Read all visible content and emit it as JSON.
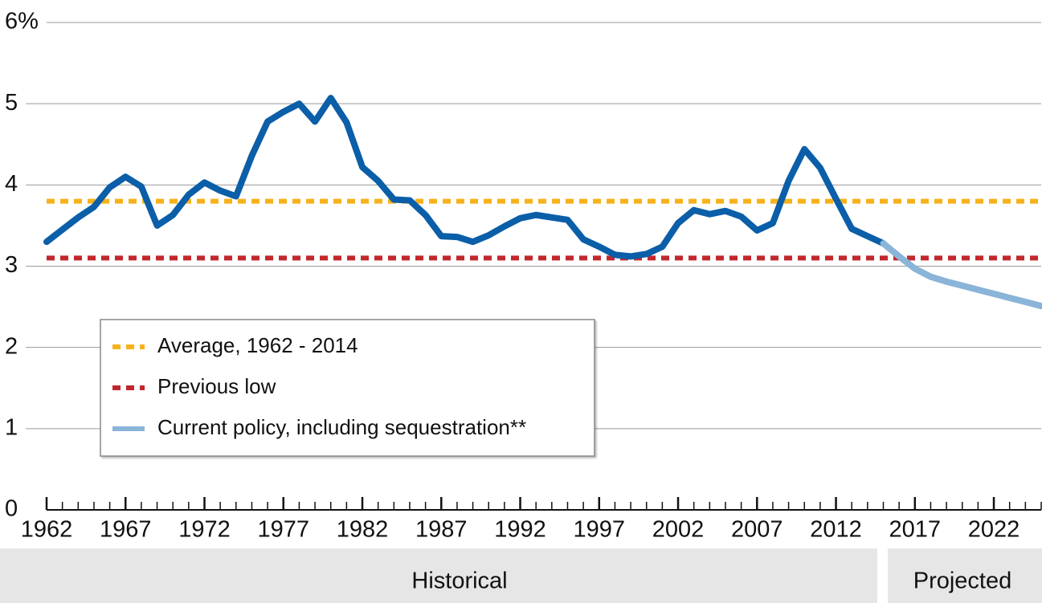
{
  "chart_data": {
    "type": "line",
    "xlim": [
      1962,
      2025
    ],
    "ylim": [
      0,
      6
    ],
    "xticks": [
      1962,
      1967,
      1972,
      1977,
      1982,
      1987,
      1992,
      1997,
      2002,
      2007,
      2012,
      2017,
      2022
    ],
    "yticks": [
      0,
      1,
      2,
      3,
      4,
      5,
      {
        "value": 6,
        "label": "6%"
      }
    ],
    "grid": true,
    "series": [
      {
        "color": "#0b5ea8",
        "x": [
          1962,
          1963,
          1964,
          1965,
          1966,
          1967,
          1968,
          1969,
          1970,
          1971,
          1972,
          1973,
          1974,
          1975,
          1976,
          1977,
          1978,
          1979,
          1980,
          1981,
          1982,
          1983,
          1984,
          1985,
          1986,
          1987,
          1988,
          1989,
          1990,
          1991,
          1992,
          1993,
          1994,
          1995,
          1996,
          1997,
          1998,
          1999,
          2000,
          2001,
          2002,
          2003,
          2004,
          2005,
          2006,
          2007,
          2008,
          2009,
          2010,
          2011,
          2012,
          2013,
          2014,
          2015
        ],
        "values": [
          3.3,
          3.45,
          3.6,
          3.73,
          3.97,
          4.1,
          3.98,
          3.5,
          3.63,
          3.88,
          4.03,
          3.93,
          3.86,
          4.36,
          4.78,
          4.9,
          5.0,
          4.78,
          5.07,
          4.77,
          4.22,
          4.05,
          3.82,
          3.81,
          3.63,
          3.37,
          3.36,
          3.3,
          3.38,
          3.49,
          3.59,
          3.63,
          3.6,
          3.57,
          3.33,
          3.24,
          3.14,
          3.12,
          3.15,
          3.24,
          3.53,
          3.69,
          3.64,
          3.68,
          3.61,
          3.44,
          3.53,
          4.05,
          4.44,
          4.21,
          3.83,
          3.46,
          3.37,
          3.28
        ]
      },
      {
        "name": "Current policy, including sequestration**",
        "color": "#8ab4d8",
        "x": [
          2015,
          2016,
          2017,
          2018,
          2019,
          2020,
          2021,
          2022,
          2023,
          2024,
          2025
        ],
        "values": [
          3.28,
          3.12,
          2.97,
          2.87,
          2.81,
          2.76,
          2.71,
          2.66,
          2.61,
          2.56,
          2.51
        ]
      }
    ],
    "reference_lines": [
      {
        "name": "Average, 1962 - 2014",
        "value": 3.8,
        "color": "#f6b21b"
      },
      {
        "name": "Previous low",
        "value": 3.1,
        "color": "#c1272d"
      }
    ],
    "regions": [
      "Historical",
      "Projected"
    ]
  }
}
